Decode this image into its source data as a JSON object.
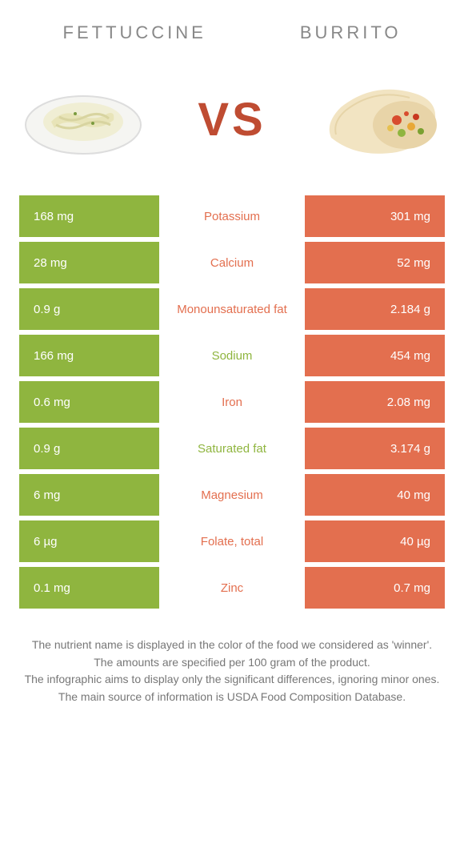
{
  "food_left": {
    "name": "FETTUCCINE",
    "color": "#8fb53f"
  },
  "food_right": {
    "name": "BURRITO",
    "color": "#e36f4f"
  },
  "vs_text": "VS",
  "vs_color": "#bf4c32",
  "nutrients": [
    {
      "label": "Potassium",
      "left": "168 mg",
      "right": "301 mg",
      "winner": "right"
    },
    {
      "label": "Calcium",
      "left": "28 mg",
      "right": "52 mg",
      "winner": "right"
    },
    {
      "label": "Monounsaturated fat",
      "left": "0.9 g",
      "right": "2.184 g",
      "winner": "right"
    },
    {
      "label": "Sodium",
      "left": "166 mg",
      "right": "454 mg",
      "winner": "left"
    },
    {
      "label": "Iron",
      "left": "0.6 mg",
      "right": "2.08 mg",
      "winner": "right"
    },
    {
      "label": "Saturated fat",
      "left": "0.9 g",
      "right": "3.174 g",
      "winner": "left"
    },
    {
      "label": "Magnesium",
      "left": "6 mg",
      "right": "40 mg",
      "winner": "right"
    },
    {
      "label": "Folate, total",
      "left": "6 µg",
      "right": "40 µg",
      "winner": "right"
    },
    {
      "label": "Zinc",
      "left": "0.1 mg",
      "right": "0.7 mg",
      "winner": "right"
    }
  ],
  "footer_lines": [
    "The nutrient name is displayed in the color of the food we considered as 'winner'.",
    "The amounts are specified per 100 gram of the product.",
    "The infographic aims to display only the significant differences, ignoring minor ones.",
    "The main source of information is USDA Food Composition Database."
  ]
}
